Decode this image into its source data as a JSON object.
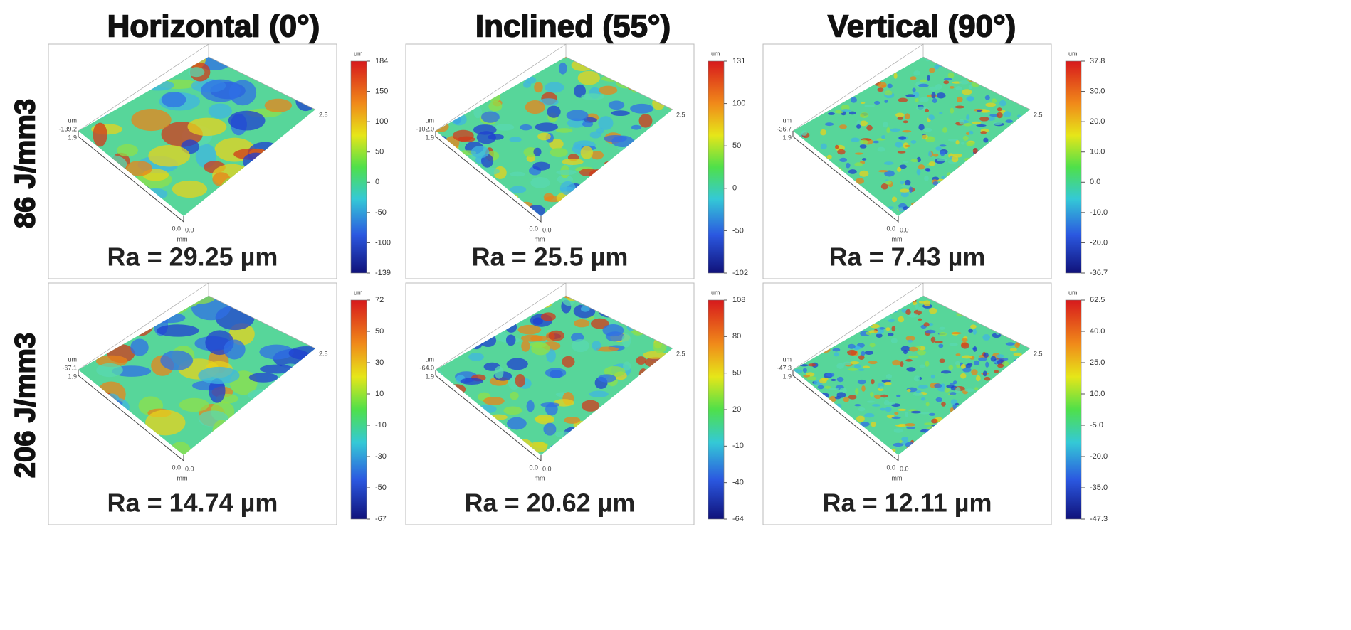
{
  "columns": [
    "Horizontal (0°)",
    "Inclined (55°)",
    "Vertical (90°)"
  ],
  "rows": [
    "86 J/mm3",
    "206 J/mm3"
  ],
  "panels": [
    {
      "ra": "Ra = 29.25 µm",
      "unit": "um",
      "colorbar": [
        "184",
        "150",
        "100",
        "50",
        "0",
        "-50",
        "-100",
        "-139"
      ],
      "zmin": "-139.2",
      "x_end": "2.5",
      "y_end": "1.9",
      "x_start": "0.0",
      "y_start": "0.0",
      "xy_unit": "mm",
      "z_unit": "um"
    },
    {
      "ra": "Ra = 25.5 µm",
      "unit": "um",
      "colorbar": [
        "131",
        "100",
        "50",
        "0",
        "-50",
        "-102"
      ],
      "zmin": "-102.0",
      "x_end": "2.5",
      "y_end": "1.9",
      "x_start": "0.0",
      "y_start": "0.0",
      "xy_unit": "mm",
      "z_unit": "um"
    },
    {
      "ra": "Ra = 7.43 µm",
      "unit": "um",
      "colorbar": [
        "37.8",
        "30.0",
        "20.0",
        "10.0",
        "0.0",
        "-10.0",
        "-20.0",
        "-36.7"
      ],
      "zmin": "-36.7",
      "x_end": "2.5",
      "y_end": "1.9",
      "x_start": "0.0",
      "y_start": "0.0",
      "xy_unit": "mm",
      "z_unit": "um"
    },
    {
      "ra": "Ra = 14.74 µm",
      "unit": "um",
      "colorbar": [
        "72",
        "50",
        "30",
        "10",
        "-10",
        "-30",
        "-50",
        "-67"
      ],
      "zmin": "-67.1",
      "x_end": "2.5",
      "y_end": "1.9",
      "x_start": "0.0",
      "y_start": "0.0",
      "xy_unit": "mm",
      "z_unit": "um"
    },
    {
      "ra": "Ra = 20.62 µm",
      "unit": "um",
      "colorbar": [
        "108",
        "80",
        "50",
        "20",
        "-10",
        "-40",
        "-64"
      ],
      "zmin": "-64.0",
      "x_end": "2.5",
      "y_end": "1.9",
      "x_start": "0.0",
      "y_start": "0.0",
      "xy_unit": "mm",
      "z_unit": "um"
    },
    {
      "ra": "Ra = 12.11 µm",
      "unit": "um",
      "colorbar": [
        "62.5",
        "40.0",
        "25.0",
        "10.0",
        "-5.0",
        "-20.0",
        "-35.0",
        "-47.3"
      ],
      "zmin": "-47.3",
      "x_end": "2.5",
      "y_end": "1.9",
      "x_start": "0.0",
      "y_start": "0.0",
      "xy_unit": "mm",
      "z_unit": "um"
    }
  ]
}
